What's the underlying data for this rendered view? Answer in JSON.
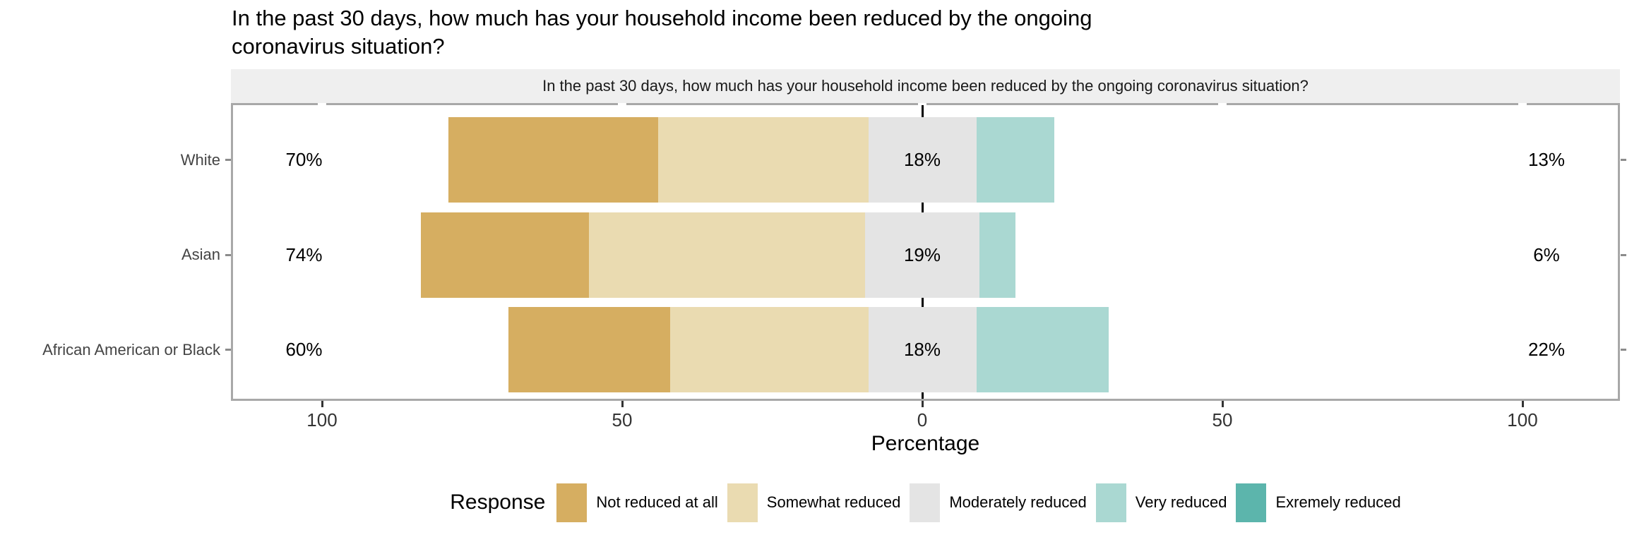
{
  "title": {
    "line1": "In the past 30 days, how much has your household income been reduced by the ongoing",
    "line2": "coronavirus situation?"
  },
  "facet_strip": {
    "label": "In the past 30 days, how much has your household income been reduced by the ongoing coronavirus situation?",
    "background": "#efefef"
  },
  "chart_data": {
    "type": "diverging-stacked-bar",
    "orientation": "horizontal",
    "categories": [
      "White",
      "Asian",
      "African American or Black"
    ],
    "series": [
      {
        "name": "Not reduced at all",
        "color": "#d6ae61",
        "values": [
          35,
          28,
          27
        ]
      },
      {
        "name": "Somewhat reduced",
        "color": "#eadbb1",
        "values": [
          35,
          46,
          33
        ]
      },
      {
        "name": "Moderately reduced",
        "color": "#e4e4e4",
        "values": [
          18,
          19,
          18
        ]
      },
      {
        "name": "Very reduced",
        "color": "#aad8d2",
        "values": [
          13,
          6,
          22
        ]
      },
      {
        "name": "Exremely reduced",
        "color": "#5cb5ac",
        "values": [
          0,
          0,
          0
        ]
      }
    ],
    "row_labels": {
      "left": [
        "70%",
        "74%",
        "60%"
      ],
      "center": [
        "18%",
        "19%",
        "18%"
      ],
      "right": [
        "13%",
        "6%",
        "22%"
      ]
    },
    "x_ticks": [
      {
        "value": -100,
        "label": "100"
      },
      {
        "value": -50,
        "label": "50"
      },
      {
        "value": 0,
        "label": "0"
      },
      {
        "value": 50,
        "label": "50"
      },
      {
        "value": 100,
        "label": "100"
      }
    ],
    "axis_range": [
      -115,
      116
    ],
    "xlabel": "Percentage",
    "legend_title": "Response",
    "legend_position": "bottom",
    "grid": false,
    "zero_line_color": "#000000",
    "panel_border_color": "#a8a8a8"
  }
}
